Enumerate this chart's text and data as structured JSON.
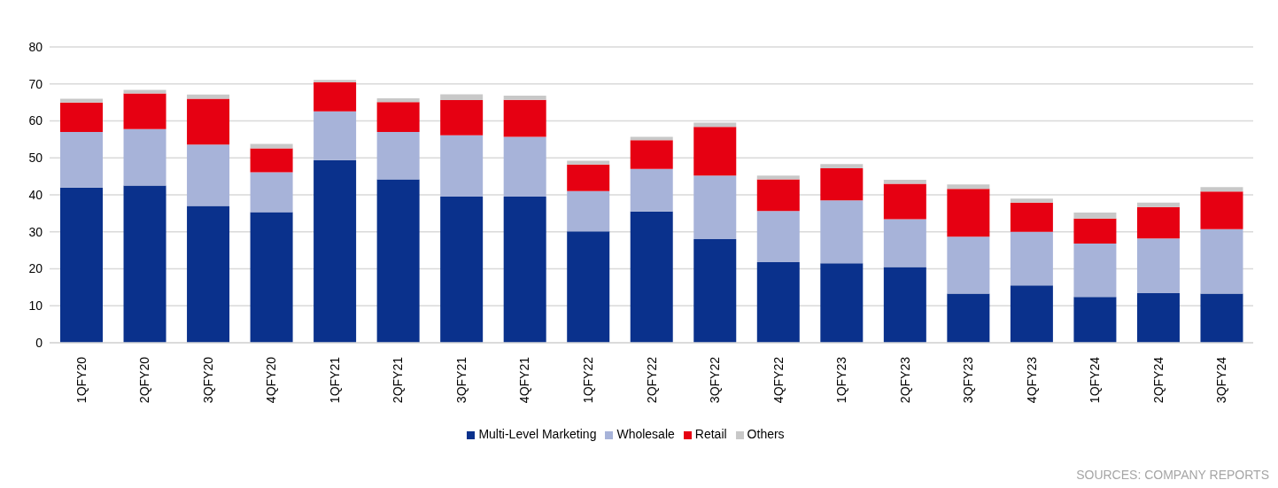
{
  "chart_data": {
    "type": "bar",
    "stacked": true,
    "categories": [
      "1QFY20",
      "2QFY20",
      "3QFY20",
      "4QFY20",
      "1QFY21",
      "2QFY21",
      "3QFY21",
      "4QFY21",
      "1QFY22",
      "2QFY22",
      "3QFY22",
      "4QFY22",
      "1QFY23",
      "2QFY23",
      "3QFY23",
      "4QFY23",
      "1QFY24",
      "2QFY24",
      "3QFY24"
    ],
    "series": [
      {
        "name": "Multi-Level Marketing",
        "color": "#0a318c",
        "values": [
          42,
          42.5,
          37,
          35.3,
          49.4,
          44.2,
          39.5,
          39.5,
          30.1,
          35.5,
          28,
          21.8,
          21.5,
          20.5,
          13.3,
          15.5,
          12.4,
          13.4,
          13.3
        ]
      },
      {
        "name": "Wholesale",
        "color": "#a7b3d9",
        "values": [
          15,
          15.3,
          16.6,
          10.8,
          13.2,
          12.8,
          16.6,
          16.2,
          10.9,
          11.5,
          17.2,
          13.8,
          17,
          12.9,
          15.4,
          14.5,
          14.4,
          14.8,
          17.4
        ]
      },
      {
        "name": "Retail",
        "color": "#e60012",
        "values": [
          8,
          9.6,
          12.4,
          6.5,
          7.9,
          8.1,
          9.5,
          10,
          7.2,
          7.8,
          13.2,
          8.6,
          8.7,
          9.6,
          12.9,
          7.9,
          6.8,
          8.5,
          10.2
        ]
      },
      {
        "name": "Others",
        "color": "#c8c8c8",
        "values": [
          1,
          1,
          1.1,
          1.2,
          0.6,
          1,
          1.6,
          1.1,
          1,
          0.9,
          1.1,
          1,
          1.1,
          1.1,
          1.2,
          1.1,
          1.6,
          1.2,
          1.2
        ]
      }
    ],
    "ylim": [
      0,
      80
    ],
    "yticks": [
      0,
      10,
      20,
      30,
      40,
      50,
      60,
      70,
      80
    ],
    "grid": "y",
    "legend": "bottom",
    "annotations": [
      "SOURCES: COMPANY REPORTS"
    ]
  }
}
